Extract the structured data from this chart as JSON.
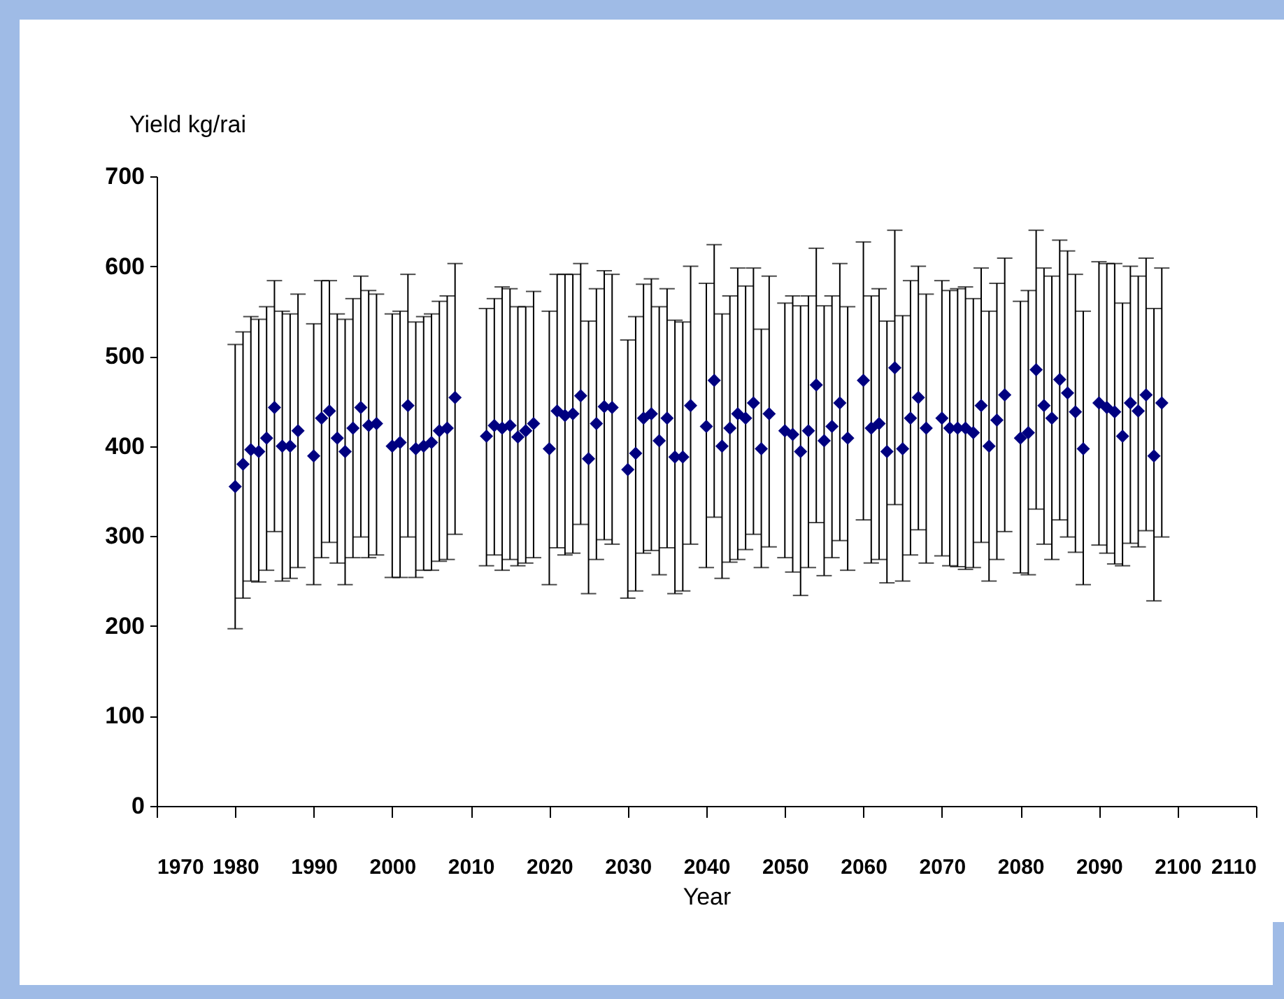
{
  "chart_data": {
    "type": "scatter",
    "xlabel": "Year",
    "ylabel": "Yield kg/rai",
    "color": "#000080",
    "marker": "diamond",
    "grid": false,
    "xlim": [
      1970,
      2110
    ],
    "xticks": [
      1970,
      1980,
      1990,
      2000,
      2010,
      2020,
      2030,
      2040,
      2050,
      2060,
      2070,
      2080,
      2090,
      2100,
      2110
    ],
    "ylim": [
      0,
      700
    ],
    "yticks": [
      0,
      100,
      200,
      300,
      400,
      500,
      600,
      700
    ],
    "x": [
      1980,
      1981,
      1982,
      1983,
      1984,
      1985,
      1986,
      1987,
      1988,
      1990,
      1991,
      1992,
      1993,
      1994,
      1995,
      1996,
      1997,
      1998,
      2000,
      2001,
      2002,
      2003,
      2004,
      2005,
      2006,
      2007,
      2008,
      2012,
      2013,
      2014,
      2015,
      2016,
      2017,
      2018,
      2020,
      2021,
      2022,
      2023,
      2024,
      2025,
      2026,
      2027,
      2028,
      2030,
      2031,
      2032,
      2033,
      2034,
      2035,
      2036,
      2037,
      2038,
      2040,
      2041,
      2042,
      2043,
      2044,
      2045,
      2046,
      2047,
      2048,
      2050,
      2051,
      2052,
      2053,
      2054,
      2055,
      2056,
      2057,
      2058,
      2060,
      2061,
      2062,
      2063,
      2064,
      2065,
      2066,
      2067,
      2068,
      2070,
      2071,
      2072,
      2073,
      2074,
      2075,
      2076,
      2077,
      2078,
      2080,
      2081,
      2082,
      2083,
      2084,
      2085,
      2086,
      2087,
      2088,
      2090,
      2091,
      2092,
      2093,
      2094,
      2095,
      2096,
      2097,
      2098
    ],
    "values": [
      355,
      380,
      396,
      394,
      409,
      443,
      400,
      400,
      417,
      389,
      431,
      439,
      409,
      394,
      420,
      443,
      423,
      425,
      400,
      404,
      445,
      397,
      400,
      404,
      417,
      420,
      454,
      411,
      423,
      420,
      423,
      410,
      417,
      425,
      397,
      439,
      434,
      436,
      456,
      386,
      425,
      444,
      443,
      374,
      392,
      431,
      436,
      406,
      431,
      388,
      388,
      445,
      422,
      473,
      400,
      420,
      436,
      431,
      448,
      397,
      436,
      417,
      413,
      394,
      417,
      468,
      406,
      422,
      448,
      409,
      473,
      420,
      425,
      394,
      487,
      397,
      431,
      454,
      420,
      431,
      420,
      420,
      420,
      415,
      445,
      400,
      429,
      457,
      409,
      415,
      485,
      445,
      431,
      474,
      459,
      438,
      397,
      448,
      443,
      438,
      411,
      448,
      439,
      457,
      389,
      448
    ],
    "errors": [
      [
        197,
        513
      ],
      [
        231,
        527
      ],
      [
        250,
        544
      ],
      [
        249,
        541
      ],
      [
        262,
        555
      ],
      [
        305,
        584
      ],
      [
        250,
        550
      ],
      [
        253,
        547
      ],
      [
        265,
        569
      ],
      [
        246,
        536
      ],
      [
        276,
        584
      ],
      [
        293,
        584
      ],
      [
        270,
        547
      ],
      [
        246,
        541
      ],
      [
        276,
        564
      ],
      [
        299,
        589
      ],
      [
        276,
        573
      ],
      [
        279,
        569
      ],
      [
        254,
        547
      ],
      [
        254,
        550
      ],
      [
        299,
        591
      ],
      [
        254,
        538
      ],
      [
        262,
        544
      ],
      [
        262,
        547
      ],
      [
        272,
        561
      ],
      [
        274,
        567
      ],
      [
        302,
        603
      ],
      [
        267,
        553
      ],
      [
        279,
        564
      ],
      [
        262,
        577
      ],
      [
        274,
        575
      ],
      [
        267,
        555
      ],
      [
        270,
        555
      ],
      [
        276,
        572
      ],
      [
        246,
        550
      ],
      [
        287,
        591
      ],
      [
        279,
        591
      ],
      [
        281,
        591
      ],
      [
        313,
        603
      ],
      [
        236,
        539
      ],
      [
        274,
        575
      ],
      [
        296,
        595
      ],
      [
        291,
        591
      ],
      [
        231,
        518
      ],
      [
        239,
        544
      ],
      [
        281,
        580
      ],
      [
        284,
        586
      ],
      [
        257,
        555
      ],
      [
        287,
        575
      ],
      [
        236,
        540
      ],
      [
        239,
        538
      ],
      [
        291,
        600
      ],
      [
        265,
        581
      ],
      [
        321,
        624
      ],
      [
        253,
        547
      ],
      [
        271,
        567
      ],
      [
        274,
        598
      ],
      [
        285,
        578
      ],
      [
        302,
        598
      ],
      [
        265,
        530
      ],
      [
        288,
        589
      ],
      [
        276,
        559
      ],
      [
        260,
        567
      ],
      [
        234,
        556
      ],
      [
        265,
        567
      ],
      [
        315,
        620
      ],
      [
        256,
        556
      ],
      [
        276,
        567
      ],
      [
        295,
        603
      ],
      [
        262,
        555
      ],
      [
        318,
        627
      ],
      [
        270,
        567
      ],
      [
        274,
        575
      ],
      [
        248,
        539
      ],
      [
        335,
        640
      ],
      [
        250,
        545
      ],
      [
        279,
        584
      ],
      [
        307,
        600
      ],
      [
        270,
        569
      ],
      [
        278,
        584
      ],
      [
        267,
        573
      ],
      [
        266,
        575
      ],
      [
        263,
        577
      ],
      [
        265,
        564
      ],
      [
        293,
        598
      ],
      [
        250,
        550
      ],
      [
        274,
        581
      ],
      [
        305,
        609
      ],
      [
        259,
        561
      ],
      [
        257,
        573
      ],
      [
        330,
        640
      ],
      [
        291,
        598
      ],
      [
        274,
        589
      ],
      [
        318,
        629
      ],
      [
        299,
        617
      ],
      [
        282,
        591
      ],
      [
        246,
        550
      ],
      [
        290,
        605
      ],
      [
        281,
        603
      ],
      [
        269,
        603
      ],
      [
        267,
        559
      ],
      [
        292,
        600
      ],
      [
        288,
        589
      ],
      [
        306,
        609
      ],
      [
        228,
        553
      ],
      [
        299,
        598
      ]
    ]
  }
}
